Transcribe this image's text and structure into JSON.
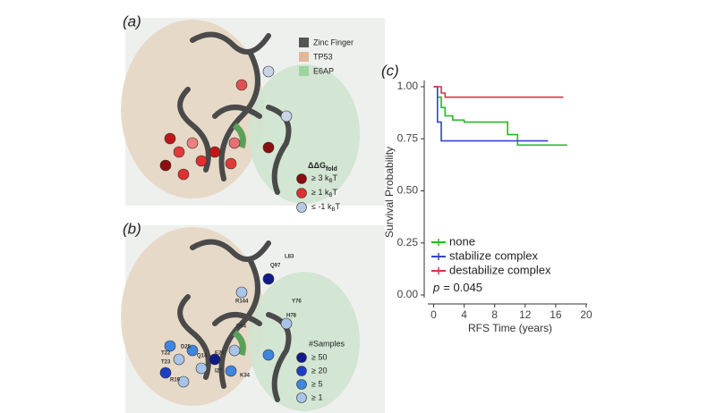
{
  "panels": {
    "a": {
      "label": "(a)",
      "legend": [
        {
          "name": "Zinc Finger",
          "color": "#555555"
        },
        {
          "name": "TP53",
          "color": "#e2b79a"
        },
        {
          "name": "E6AP",
          "color": "#9ed39e"
        }
      ],
      "ddg_title": "ΔΔG",
      "ddg_sub": "fold",
      "ddg_items": [
        {
          "name": "≥ 3 k",
          "sub": "B",
          "tail": "T",
          "color": "#8b0e0e"
        },
        {
          "name": "≥ 1 k",
          "sub": "B",
          "tail": "T",
          "color": "#e03030"
        },
        {
          "name": "≤ -1 k",
          "sub": "B",
          "tail": "T",
          "color": "#b8c8e0"
        }
      ]
    },
    "b": {
      "label": "(b)",
      "residues": [
        "L83",
        "Q97",
        "R144",
        "Y76",
        "H78",
        "D64",
        "T22",
        "D25",
        "Q14",
        "T23",
        "I27",
        "E29",
        "K34",
        "R19"
      ],
      "samples_title": "#Samples",
      "samples_items": [
        {
          "name": "≥ 50",
          "color": "#101a8a"
        },
        {
          "name": "≥ 20",
          "color": "#1f3fc8"
        },
        {
          "name": "≥  5",
          "color": "#3f86e0"
        },
        {
          "name": "≥  1",
          "color": "#a8c4e8"
        }
      ]
    }
  },
  "chart_data": {
    "type": "line",
    "panel_label": "(c)",
    "x_label": "RFS Time (years)",
    "y_label": "Survival Probability",
    "xlim": [
      -1,
      20
    ],
    "ylim": [
      0,
      1
    ],
    "xticks": [
      0,
      4,
      8,
      12,
      16,
      20
    ],
    "yticks": [
      {
        "value": 0,
        "label": "0.00"
      },
      {
        "value": 0.25,
        "label": "0.25"
      },
      {
        "value": 0.5,
        "label": "0.50"
      },
      {
        "value": 0.75,
        "label": "0.75"
      },
      {
        "value": 1,
        "label": "1.00"
      }
    ],
    "annotation": {
      "symbol": "p",
      "text": "= 0.045"
    },
    "series": [
      {
        "name": "none",
        "color": "#22bb22",
        "x": [
          0,
          0.5,
          0.5,
          1,
          1,
          1.5,
          1.5,
          2.5,
          2.5,
          4,
          4,
          9.7,
          9.7,
          11,
          11,
          17.5
        ],
        "values": [
          1,
          1,
          0.95,
          0.95,
          0.9,
          0.9,
          0.86,
          0.86,
          0.84,
          0.84,
          0.83,
          0.83,
          0.77,
          0.77,
          0.72,
          0.72
        ]
      },
      {
        "name": "stabilize complex",
        "color": "#3344cc",
        "x": [
          0,
          0.5,
          0.5,
          1,
          1,
          15
        ],
        "values": [
          1,
          1,
          0.83,
          0.83,
          0.74,
          0.74
        ]
      },
      {
        "name": "destabilize complex",
        "color": "#dd3344",
        "x": [
          0,
          1,
          1,
          1.5,
          1.5,
          17
        ],
        "values": [
          1,
          1,
          0.97,
          0.97,
          0.95,
          0.95
        ]
      }
    ]
  }
}
